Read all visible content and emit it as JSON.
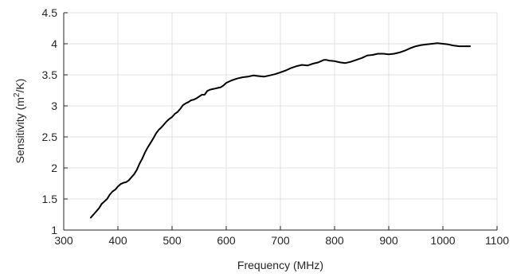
{
  "chart_data": {
    "type": "line",
    "title": "",
    "xlabel": "Frequency (MHz)",
    "ylabel_prefix": "Sensitivity (m",
    "ylabel_sup": "2",
    "ylabel_suffix": "/K)",
    "xlim": [
      300,
      1100
    ],
    "ylim": [
      1,
      4.5
    ],
    "grid": true,
    "x_ticks": [
      300,
      400,
      500,
      600,
      700,
      800,
      900,
      1000,
      1100
    ],
    "x_tick_labels": [
      "300",
      "400",
      "500",
      "600",
      "700",
      "800",
      "900",
      "1000",
      "1100"
    ],
    "y_ticks": [
      1,
      1.5,
      2,
      2.5,
      3,
      3.5,
      4,
      4.5
    ],
    "y_tick_labels": [
      "1",
      "1.5",
      "2",
      "2.5",
      "3",
      "3.5",
      "4",
      "4.5"
    ],
    "line_color": "#000000",
    "series": [
      {
        "x": [
          350,
          355,
          360,
          365,
          370,
          375,
          380,
          385,
          390,
          395,
          400,
          405,
          410,
          415,
          420,
          425,
          430,
          435,
          440,
          445,
          450,
          455,
          460,
          465,
          470,
          475,
          480,
          485,
          490,
          495,
          500,
          505,
          510,
          515,
          520,
          525,
          530,
          535,
          540,
          545,
          550,
          555,
          560,
          565,
          570,
          575,
          580,
          585,
          590,
          595,
          600,
          610,
          620,
          630,
          640,
          650,
          660,
          670,
          680,
          690,
          700,
          710,
          720,
          730,
          740,
          750,
          760,
          770,
          775,
          780,
          785,
          790,
          800,
          810,
          820,
          830,
          840,
          850,
          855,
          860,
          870,
          880,
          890,
          900,
          910,
          920,
          930,
          940,
          950,
          960,
          970,
          980,
          990,
          1000,
          1010,
          1020,
          1030,
          1040,
          1050
        ],
        "y": [
          1.2,
          1.25,
          1.3,
          1.35,
          1.42,
          1.46,
          1.5,
          1.57,
          1.62,
          1.65,
          1.7,
          1.74,
          1.76,
          1.77,
          1.8,
          1.85,
          1.9,
          1.97,
          2.07,
          2.15,
          2.25,
          2.33,
          2.4,
          2.47,
          2.55,
          2.61,
          2.65,
          2.7,
          2.75,
          2.79,
          2.82,
          2.87,
          2.9,
          2.95,
          3.01,
          3.04,
          3.06,
          3.09,
          3.1,
          3.12,
          3.15,
          3.18,
          3.18,
          3.24,
          3.26,
          3.27,
          3.28,
          3.29,
          3.3,
          3.33,
          3.37,
          3.41,
          3.44,
          3.46,
          3.47,
          3.49,
          3.48,
          3.47,
          3.49,
          3.51,
          3.54,
          3.57,
          3.61,
          3.64,
          3.66,
          3.65,
          3.68,
          3.7,
          3.72,
          3.74,
          3.74,
          3.73,
          3.72,
          3.7,
          3.69,
          3.71,
          3.74,
          3.77,
          3.79,
          3.81,
          3.82,
          3.84,
          3.84,
          3.83,
          3.84,
          3.86,
          3.89,
          3.93,
          3.96,
          3.98,
          3.99,
          4.0,
          4.01,
          4.0,
          3.99,
          3.97,
          3.96,
          3.96,
          3.96
        ]
      }
    ]
  }
}
